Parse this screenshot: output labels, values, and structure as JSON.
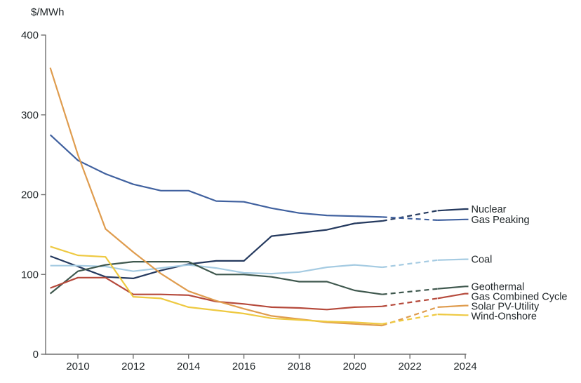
{
  "title": "$/MWh",
  "colors": {
    "background": "#ffffff",
    "text": "#21272a",
    "axis": "#6f6f6f"
  },
  "chart_data": {
    "type": "line",
    "title": "$/MWh",
    "xlabel": "",
    "ylabel": "$/MWh",
    "ylim": [
      0,
      400
    ],
    "xlim": [
      2008.85,
      2024.1
    ],
    "grid": false,
    "legend_position": "right-end-labels",
    "y_tick_labels": [
      "0",
      "100",
      "200",
      "300",
      "400"
    ],
    "y_tick_values": [
      0,
      100,
      200,
      300,
      400
    ],
    "x_tick_labels": [
      "2010",
      "2012",
      "2014",
      "2016",
      "2018",
      "2020",
      "2022",
      "2024"
    ],
    "x_tick_values": [
      2010,
      2012,
      2014,
      2016,
      2018,
      2020,
      2022,
      2024
    ],
    "years": [
      2009,
      2010,
      2011,
      2012,
      2013,
      2014,
      2015,
      2016,
      2017,
      2018,
      2019,
      2020,
      2021,
      2023,
      2024
    ],
    "dashed_between_years": [
      2021,
      2023
    ],
    "series": [
      {
        "name": "Nuclear",
        "color": "#24395e",
        "values": [
          123,
          110,
          97,
          95,
          105,
          113,
          117,
          117,
          148,
          152,
          156,
          164,
          167,
          180,
          182
        ]
      },
      {
        "name": "Gas Peaking",
        "color": "#40619f",
        "values": [
          275,
          243,
          226,
          213,
          205,
          205,
          192,
          191,
          183,
          177,
          174,
          173,
          172,
          168,
          169
        ]
      },
      {
        "name": "Coal",
        "color": "#a5cbe2",
        "values": [
          111,
          111,
          110,
          104,
          108,
          112,
          108,
          102,
          101,
          103,
          109,
          112,
          109,
          118,
          119
        ]
      },
      {
        "name": "Geothermal",
        "color": "#3f584e",
        "values": [
          76,
          104,
          112,
          116,
          116,
          116,
          100,
          100,
          97,
          91,
          91,
          80,
          75,
          82,
          85
        ]
      },
      {
        "name": "Gas Combined Cycle",
        "color": "#b5493b",
        "values": [
          83,
          96,
          96,
          75,
          75,
          74,
          66,
          63,
          59,
          58,
          56,
          59,
          60,
          70,
          76
        ]
      },
      {
        "name": "Solar PV-Utility",
        "color": "#df9c4e",
        "values": [
          359,
          250,
          157,
          128,
          101,
          79,
          67,
          57,
          48,
          44,
          40,
          38,
          36,
          59,
          61
        ]
      },
      {
        "name": "Wind-Onshore",
        "color": "#eec941",
        "values": [
          135,
          124,
          122,
          72,
          70,
          59,
          55,
          51,
          45,
          43,
          41,
          40,
          38,
          50,
          49
        ]
      }
    ]
  }
}
